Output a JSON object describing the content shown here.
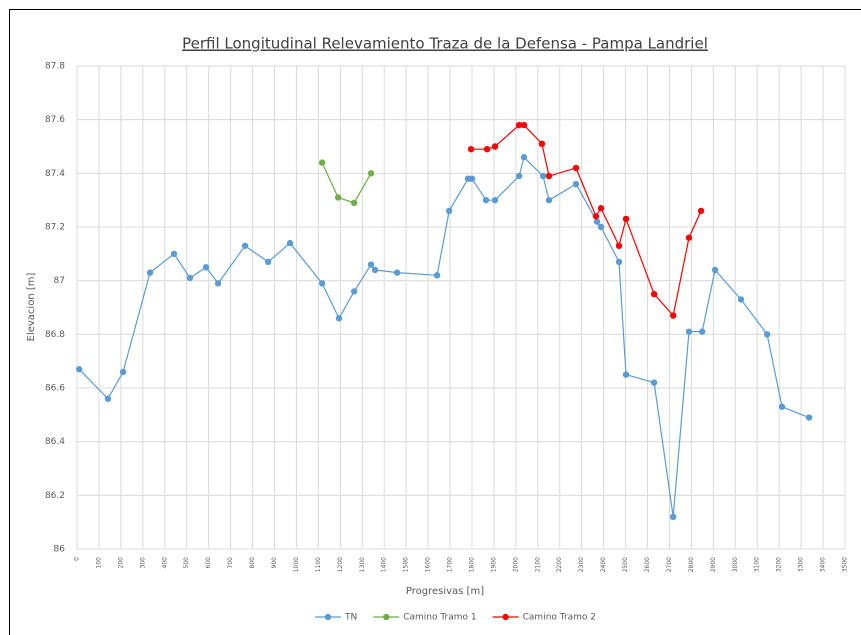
{
  "chart_data": {
    "type": "line",
    "title": "Perfil Longitudinal Relevamiento Traza de la Defensa - Pampa Landriel",
    "xlabel": "Progresivas [m]",
    "ylabel": "Elevacion [m]",
    "xlim": [
      0,
      3500
    ],
    "xticks": [
      0,
      100,
      200,
      300,
      400,
      500,
      600,
      700,
      800,
      900,
      1000,
      1100,
      1200,
      1300,
      1400,
      1500,
      1600,
      1700,
      1800,
      1900,
      2000,
      2100,
      2200,
      2300,
      2400,
      2500,
      2600,
      2700,
      2800,
      2900,
      3000,
      3100,
      3200,
      3300,
      3400,
      3500
    ],
    "ylim": [
      86,
      87.8
    ],
    "yticks": [
      86,
      86.2,
      86.4,
      86.6,
      86.8,
      87,
      87.2,
      87.4,
      87.6,
      87.8
    ],
    "grid": true,
    "legend": "bottom",
    "series": [
      {
        "name": "TN",
        "color": "#5b9bd5",
        "x": [
          10,
          141,
          210,
          333,
          442,
          515,
          588,
          643,
          766,
          871,
          971,
          1117,
          1194,
          1263,
          1340,
          1358,
          1459,
          1641,
          1696,
          1782,
          1800,
          1864,
          1905,
          2015,
          2037,
          2124,
          2151,
          2274,
          2370,
          2388,
          2470,
          2502,
          2630,
          2717,
          2789,
          2849,
          2908,
          3026,
          3145,
          3213,
          3336
        ],
        "values": [
          86.67,
          86.56,
          86.66,
          87.03,
          87.1,
          87.01,
          87.05,
          86.99,
          87.13,
          87.07,
          87.14,
          86.99,
          86.86,
          86.96,
          87.06,
          87.04,
          87.03,
          87.02,
          87.26,
          87.38,
          87.38,
          87.3,
          87.3,
          87.39,
          87.46,
          87.39,
          87.3,
          87.36,
          87.22,
          87.2,
          87.07,
          86.65,
          86.62,
          86.12,
          86.81,
          86.81,
          87.04,
          86.93,
          86.8,
          86.53,
          86.49
        ]
      },
      {
        "name": "Camino Tramo 1",
        "color": "#70ad47",
        "x": [
          1117,
          1190,
          1263,
          1340
        ],
        "values": [
          87.44,
          87.31,
          87.29,
          87.4
        ]
      },
      {
        "name": "Camino Tramo 2",
        "color": "#ff0000",
        "x": [
          1796,
          1869,
          1905,
          2015,
          2037,
          2119,
          2151,
          2274,
          2365,
          2388,
          2470,
          2502,
          2630,
          2717,
          2789,
          2844
        ],
        "values": [
          87.49,
          87.49,
          87.5,
          87.58,
          87.58,
          87.51,
          87.39,
          87.42,
          87.24,
          87.27,
          87.13,
          87.23,
          86.95,
          86.87,
          87.16,
          87.26
        ]
      }
    ]
  }
}
